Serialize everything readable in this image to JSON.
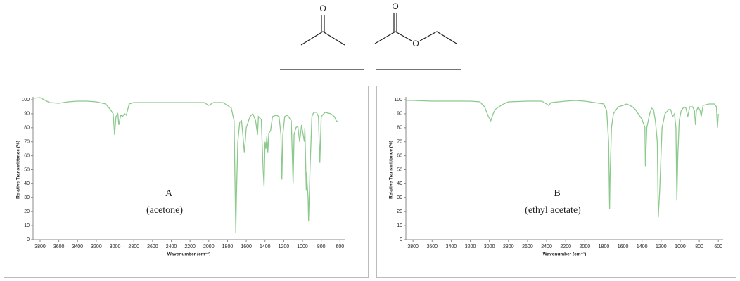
{
  "structures": [
    {
      "atoms": [
        "O"
      ]
    },
    {
      "atoms": [
        "O",
        "O"
      ]
    }
  ],
  "chart_data": [
    {
      "type": "line",
      "xlabel": "Wavenumber (cm⁻¹)",
      "ylabel": "Relative Transmittance (%)",
      "annotations": [
        "A",
        "(acetone)"
      ],
      "color": "#8cc98c",
      "xlim": [
        3875,
        550
      ],
      "ylim": [
        0,
        100
      ],
      "xticks": [
        3800,
        3600,
        3400,
        3200,
        3000,
        2800,
        2600,
        2400,
        2200,
        2000,
        1800,
        1600,
        1400,
        1200,
        1000,
        800,
        600
      ],
      "yticks": [
        0,
        10,
        20,
        30,
        40,
        50,
        60,
        70,
        80,
        90,
        100
      ],
      "x": [
        3875,
        3800,
        3700,
        3600,
        3500,
        3400,
        3300,
        3200,
        3100,
        3050,
        3020,
        3005,
        2990,
        2970,
        2960,
        2940,
        2920,
        2900,
        2880,
        2850,
        2800,
        2600,
        2400,
        2200,
        2050,
        2000,
        1950,
        1850,
        1800,
        1760,
        1730,
        1720,
        1712,
        1705,
        1690,
        1670,
        1650,
        1630,
        1620,
        1600,
        1560,
        1530,
        1500,
        1480,
        1470,
        1440,
        1420,
        1410,
        1400,
        1390,
        1380,
        1370,
        1360,
        1340,
        1320,
        1280,
        1250,
        1230,
        1220,
        1210,
        1190,
        1160,
        1120,
        1100,
        1090,
        1070,
        1050,
        1030,
        1010,
        1000,
        980,
        975,
        960,
        955,
        950,
        940,
        935,
        920,
        900,
        880,
        850,
        830,
        815,
        800,
        760,
        700,
        660,
        640,
        620
      ],
      "values": [
        101,
        101.5,
        98,
        97.5,
        98.5,
        99,
        99,
        98.5,
        97,
        93,
        90,
        75,
        88,
        90,
        82,
        89,
        88,
        90,
        89,
        97,
        98,
        98,
        98,
        98,
        98,
        96,
        98,
        98,
        96,
        94,
        85,
        40,
        5,
        30,
        70,
        84,
        85,
        70,
        62,
        80,
        88,
        90,
        85,
        75,
        88,
        86,
        50,
        38,
        70,
        65,
        74,
        62,
        76,
        78,
        88,
        89,
        88,
        75,
        43,
        75,
        88,
        89,
        85,
        40,
        75,
        80,
        81,
        70,
        82,
        78,
        70,
        80,
        35,
        48,
        40,
        30,
        13,
        50,
        88,
        91,
        91,
        88,
        55,
        88,
        91,
        90,
        88,
        85,
        84
      ]
    },
    {
      "type": "line",
      "xlabel": "Wavenumber (cm⁻¹)",
      "ylabel": "Relative Transmittance (%)",
      "annotations": [
        "B",
        "(ethyl acetate)"
      ],
      "color": "#8cc98c",
      "xlim": [
        3875,
        550
      ],
      "ylim": [
        0,
        100
      ],
      "xticks": [
        3800,
        3600,
        3400,
        3200,
        3000,
        2800,
        2600,
        2400,
        2200,
        2000,
        1800,
        1600,
        1400,
        1200,
        1000,
        800,
        600
      ],
      "yticks": [
        0,
        10,
        20,
        30,
        40,
        50,
        60,
        70,
        80,
        90,
        100
      ],
      "x": [
        3875,
        3800,
        3600,
        3400,
        3200,
        3100,
        3050,
        3010,
        2985,
        2960,
        2940,
        2900,
        2850,
        2800,
        2600,
        2450,
        2400,
        2380,
        2350,
        2200,
        2100,
        2000,
        1900,
        1800,
        1770,
        1750,
        1740,
        1735,
        1720,
        1700,
        1650,
        1600,
        1560,
        1500,
        1470,
        1440,
        1400,
        1370,
        1365,
        1350,
        1320,
        1300,
        1280,
        1260,
        1240,
        1230,
        1215,
        1190,
        1160,
        1120,
        1100,
        1080,
        1060,
        1045,
        1035,
        1025,
        1010,
        990,
        960,
        940,
        920,
        900,
        870,
        850,
        840,
        830,
        810,
        790,
        780,
        760,
        700,
        640,
        620,
        610,
        600
      ],
      "values": [
        99.5,
        99.5,
        99,
        99,
        99,
        98.5,
        95,
        88,
        85,
        90,
        93,
        95,
        97,
        98.5,
        99,
        99,
        97,
        96,
        98,
        99,
        99.5,
        99,
        98,
        97,
        92,
        70,
        22,
        45,
        80,
        90,
        95,
        96,
        97,
        95,
        93,
        90,
        86,
        80,
        52,
        80,
        90,
        94,
        93,
        85,
        70,
        16,
        35,
        80,
        90,
        93,
        93,
        88,
        90,
        80,
        28,
        60,
        85,
        92,
        95,
        94,
        88,
        95,
        95,
        92,
        82,
        92,
        95,
        92,
        88,
        96,
        97,
        97,
        95,
        80,
        90
      ]
    }
  ]
}
